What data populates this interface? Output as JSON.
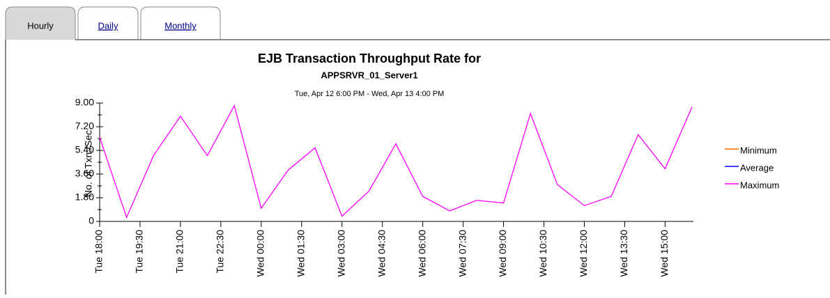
{
  "tabs": [
    "Hourly",
    "Daily",
    "Monthly"
  ],
  "chart_data": {
    "type": "line",
    "title": "EJB Transaction Throughput Rate for",
    "subtitle": "APPSRVR_01_Server1",
    "date_range": "Tue, Apr 12 6:00 PM - Wed, Apr 13 4:00 PM",
    "y_label": "No. of Txn./Sec.",
    "x": [
      0,
      1,
      2,
      3,
      4,
      5,
      6,
      7,
      8,
      9,
      10,
      11,
      12,
      13,
      14,
      15,
      16,
      17,
      18,
      19,
      20,
      21,
      22
    ],
    "xlim": [
      0,
      22
    ],
    "xticks": [
      {
        "value": 0,
        "label": "Tue 18:00"
      },
      {
        "value": 1.5,
        "label": "Tue 19:30"
      },
      {
        "value": 3,
        "label": "Tue 21:00"
      },
      {
        "value": 4.5,
        "label": "Tue 22:30"
      },
      {
        "value": 6,
        "label": "Wed 00:00"
      },
      {
        "value": 7.5,
        "label": "Wed 01:30"
      },
      {
        "value": 9,
        "label": "Wed 03:00"
      },
      {
        "value": 10.5,
        "label": "Wed 04:30"
      },
      {
        "value": 12,
        "label": "Wed 06:00"
      },
      {
        "value": 13.5,
        "label": "Wed 07:30"
      },
      {
        "value": 15,
        "label": "Wed 09:00"
      },
      {
        "value": 16.5,
        "label": "Wed 10:30"
      },
      {
        "value": 18,
        "label": "Wed 12:00"
      },
      {
        "value": 19.5,
        "label": "Wed 13:30"
      },
      {
        "value": 21,
        "label": "Wed 15:00"
      }
    ],
    "ylim": [
      0,
      9
    ],
    "yticks": [
      0,
      {
        "value": 1.8,
        "label": "1.80"
      },
      {
        "value": 3.6,
        "label": "3.60"
      },
      {
        "value": 5.4,
        "label": "5.40"
      },
      {
        "value": 7.2,
        "label": "7.20"
      },
      {
        "value": 9,
        "label": "9.00"
      }
    ],
    "series": [
      {
        "name": "Minimum",
        "color": "#ff6600"
      },
      {
        "name": "Average",
        "color": "#0000ff"
      },
      {
        "name": "Maximum",
        "color": "#ff00ff",
        "values": [
          6.4,
          0.3,
          5.0,
          8.0,
          5.0,
          8.8,
          1.0,
          3.9,
          5.6,
          0.4,
          2.3,
          5.9,
          1.9,
          0.8,
          1.6,
          1.4,
          8.2,
          2.8,
          1.2,
          1.9,
          6.6,
          4.0,
          8.7
        ]
      }
    ]
  }
}
